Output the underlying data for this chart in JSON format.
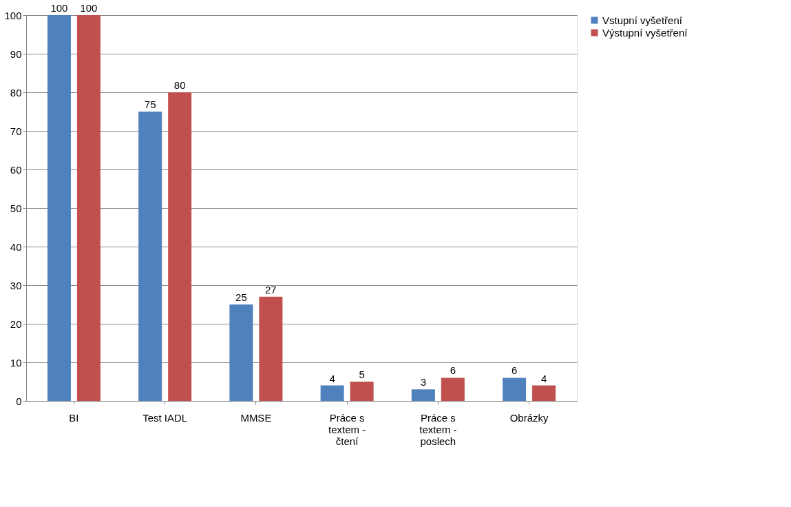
{
  "chart_data": {
    "type": "bar",
    "categories": [
      "BI",
      "Test IADL",
      "MMSE",
      "Práce s textem - čtení",
      "Práce s textem - poslech",
      "Obrázky"
    ],
    "series": [
      {
        "name": "Vstupní vyšetření",
        "color": "#4f81bd",
        "values": [
          100,
          75,
          25,
          4,
          3,
          6
        ]
      },
      {
        "name": "Výstupní vyšetření",
        "color": "#c0504d",
        "values": [
          100,
          80,
          27,
          5,
          6,
          4
        ]
      }
    ],
    "ylim": [
      0,
      100
    ],
    "yticks": [
      0,
      10,
      20,
      30,
      40,
      50,
      60,
      70,
      80,
      90,
      100
    ],
    "grid": "y",
    "legend": "right",
    "data_labels": true
  }
}
